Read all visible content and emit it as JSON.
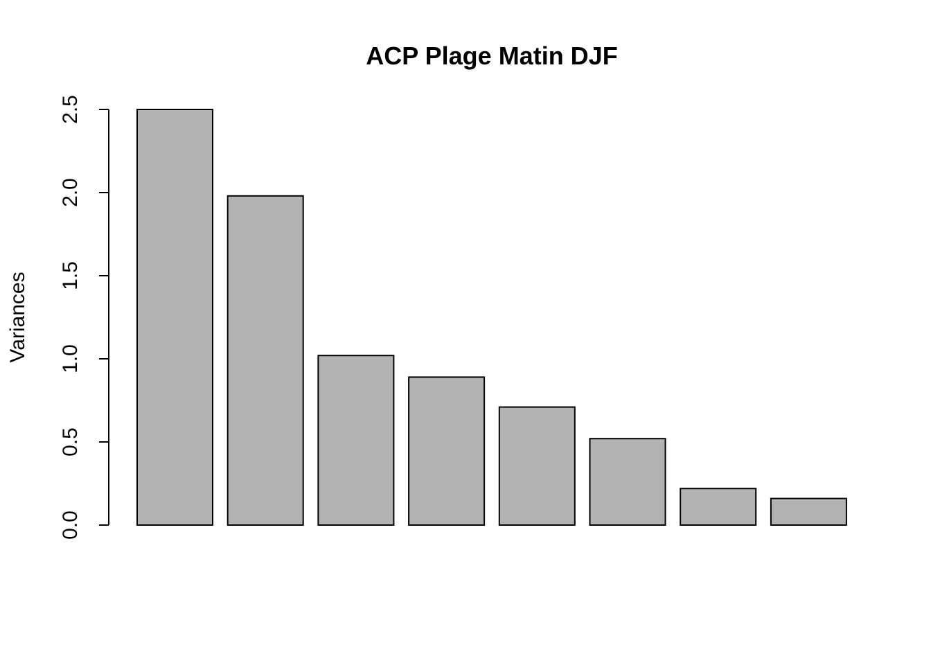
{
  "chart_data": {
    "type": "bar",
    "title": "ACP Plage Matin DJF",
    "xlabel": "",
    "ylabel": "Variances",
    "values": [
      2.5,
      1.98,
      1.02,
      0.89,
      0.71,
      0.52,
      0.22,
      0.16
    ],
    "ylim": [
      0,
      2.5
    ],
    "yticks": [
      "0.0",
      "0.5",
      "1.0",
      "1.5",
      "2.0",
      "2.5"
    ],
    "grid": false,
    "legend": "none",
    "bar_color": "#b2b2b2",
    "edge_color": "#000000"
  }
}
